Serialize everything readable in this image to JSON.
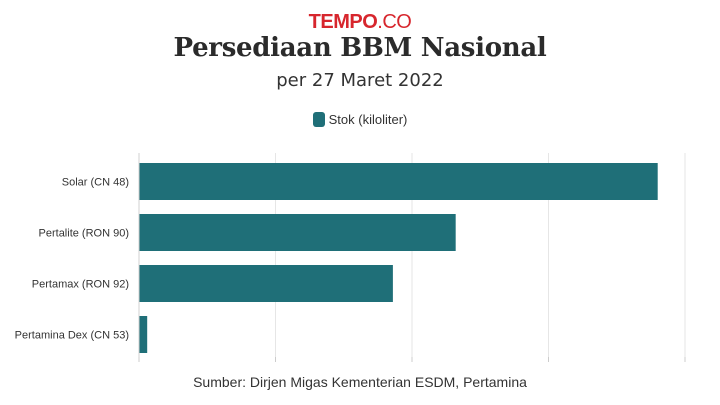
{
  "header": {
    "logo_brand": "TEMPO",
    "logo_tld": ".CO",
    "title": "Persediaan BBM Nasional",
    "subtitle": "per 27 Maret 2022"
  },
  "legend": {
    "label": "Stok (kiloliter)",
    "color": "#1f6f78"
  },
  "source": "Sumber: Dirjen Migas Kementerian ESDM, Pertamina",
  "chart_data": {
    "type": "bar",
    "orientation": "horizontal",
    "categories": [
      "Solar (CN 48)",
      "Pertalite (RON 90)",
      "Pertamax (RON 92)",
      "Pertamina Dex (CN 53)"
    ],
    "series": [
      {
        "name": "Stok (kiloliter)",
        "values": [
          1900000,
          1160000,
          930000,
          30000
        ],
        "color": "#1f6f78"
      }
    ],
    "xlim": [
      0,
      2000000
    ],
    "xticks": [
      0,
      500000,
      1000000,
      1500000,
      2000000
    ],
    "grid": true,
    "legend": "top-center"
  }
}
